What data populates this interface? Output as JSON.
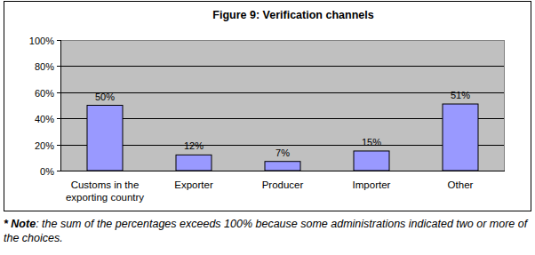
{
  "chart_data": {
    "type": "bar",
    "title": "Figure 9: Verification channels",
    "categories": [
      "Customs in the exporting country",
      "Exporter",
      "Producer",
      "Importer",
      "Other"
    ],
    "values": [
      50,
      12,
      7,
      15,
      51
    ],
    "value_labels": [
      "50%",
      "12%",
      "7%",
      "15%",
      "51%"
    ],
    "color": "#9999ff",
    "ylim": [
      0,
      100
    ],
    "yticks": [
      {
        "value": 0,
        "label": "0%"
      },
      {
        "value": 20,
        "label": "20%"
      },
      {
        "value": 40,
        "label": "40%"
      },
      {
        "value": 60,
        "label": "60%"
      },
      {
        "value": 80,
        "label": "80%"
      },
      {
        "value": 100,
        "label": "100%"
      }
    ],
    "grid": true,
    "data_labels": true,
    "annotations": [
      "* Note: the sum of the percentages exceeds 100% because some administrations indicated two or more of the choices."
    ]
  }
}
